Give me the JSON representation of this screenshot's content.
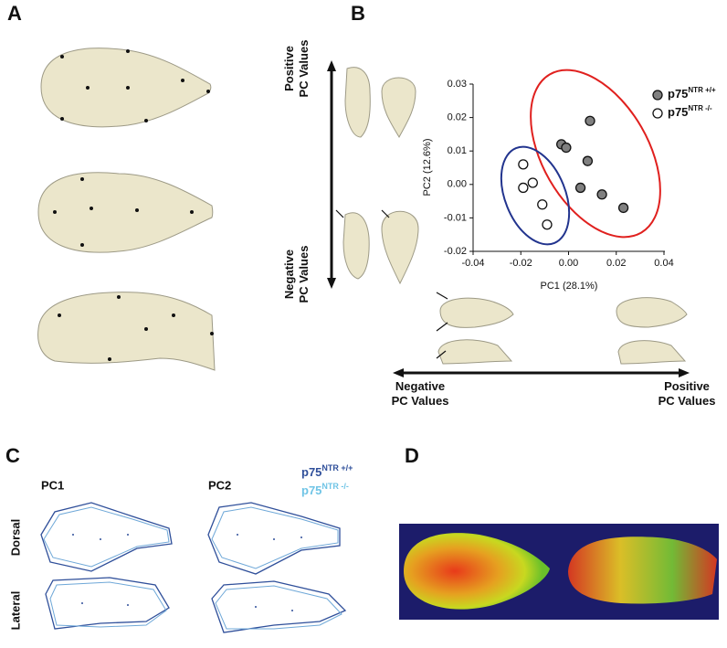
{
  "panel_labels": [
    "A",
    "B",
    "C",
    "D"
  ],
  "panel_b": {
    "vertical_positive": [
      "Positive",
      "PC Values"
    ],
    "vertical_negative": [
      "Negative",
      "PC Values"
    ],
    "horizontal_negative": [
      "Negative",
      "PC Values"
    ],
    "horizontal_positive": [
      "Positive",
      "PC Values"
    ]
  },
  "chart_data": {
    "type": "scatter",
    "x_label": "PC1 (28.1%)",
    "y_label": "PC2 (12.6%)",
    "xlim": [
      -0.04,
      0.04
    ],
    "ylim": [
      -0.02,
      0.03
    ],
    "xticks": [
      -0.04,
      -0.02,
      {
        "value": 0,
        "label": "0.00"
      },
      0.02,
      0.04
    ],
    "yticks": [
      -0.02,
      -0.01,
      {
        "value": 0,
        "label": "0.00"
      },
      0.01,
      0.02,
      0.03
    ],
    "series": [
      {
        "name": "p75",
        "sup": "NTR +/+",
        "color": "#808080",
        "x": [
          -0.003,
          -0.001,
          0.009,
          0.008,
          0.005,
          0.014,
          0.023
        ],
        "values": [
          0.012,
          0.011,
          0.019,
          0.007,
          -0.001,
          -0.003,
          -0.007
        ]
      },
      {
        "name": "p75",
        "sup": "NTR -/-",
        "color": "#ffffff",
        "x": [
          -0.019,
          -0.019,
          -0.015,
          -0.011,
          -0.009
        ],
        "values": [
          0.006,
          -0.001,
          0.0005,
          -0.006,
          -0.012
        ]
      }
    ]
  },
  "panel_c": {
    "columns": [
      "PC1",
      "PC2"
    ],
    "rows": [
      "Dorsal",
      "Lateral"
    ],
    "legend": [
      {
        "name": "p75",
        "sup": "NTR +/+"
      },
      {
        "name": "p75",
        "sup": "NTR -/-"
      }
    ]
  }
}
